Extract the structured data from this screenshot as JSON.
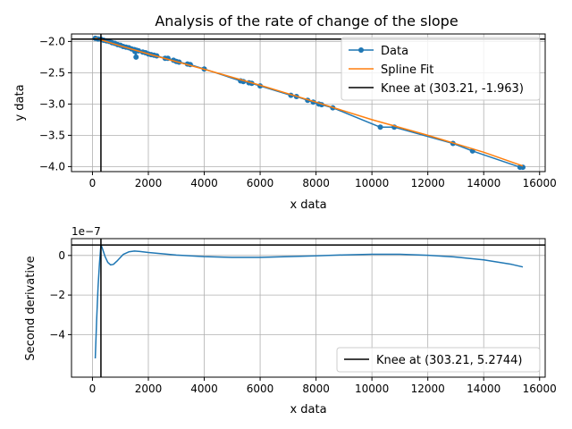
{
  "figure_title": "Analysis of the rate of change of the slope",
  "colors": {
    "data": "#1f77b4",
    "spline": "#ff7f0e",
    "knee": "#000000",
    "grid": "#b0b0b0"
  },
  "chart_data": [
    {
      "type": "line",
      "title": "Analysis of the rate of change of the slope",
      "xlabel": "x data",
      "ylabel": "y data",
      "xlim": [
        -750,
        16200
      ],
      "ylim": [
        -4.08,
        -1.88
      ],
      "xticks": [
        0,
        2000,
        4000,
        6000,
        8000,
        10000,
        12000,
        14000,
        16000
      ],
      "yticks": [
        -4.0,
        -3.5,
        -3.0,
        -2.5,
        -2.0
      ],
      "xtick_labels": [
        "0",
        "2000",
        "4000",
        "6000",
        "8000",
        "10000",
        "12000",
        "14000",
        "16000"
      ],
      "ytick_labels": [
        "−4.0",
        "−3.5",
        "−3.0",
        "−2.5",
        "−2.0"
      ],
      "grid": true,
      "legend_position": "upper right",
      "series": [
        {
          "name": "Data",
          "style": "line-with-markers",
          "points": [
            [
              100,
              -1.95
            ],
            [
              200,
              -1.96
            ],
            [
              303,
              -1.963
            ],
            [
              400,
              -1.98
            ],
            [
              500,
              -1.99
            ],
            [
              600,
              -2.0
            ],
            [
              700,
              -2.02
            ],
            [
              800,
              -2.03
            ],
            [
              900,
              -2.05
            ],
            [
              1000,
              -2.06
            ],
            [
              1100,
              -2.08
            ],
            [
              1200,
              -2.09
            ],
            [
              1300,
              -2.1
            ],
            [
              1400,
              -2.12
            ],
            [
              1500,
              -2.13
            ],
            [
              1520,
              -2.16
            ],
            [
              1560,
              -2.25
            ],
            [
              1580,
              -2.14
            ],
            [
              1650,
              -2.15
            ],
            [
              1800,
              -2.17
            ],
            [
              1900,
              -2.18
            ],
            [
              2000,
              -2.2
            ],
            [
              2100,
              -2.21
            ],
            [
              2200,
              -2.22
            ],
            [
              2300,
              -2.23
            ],
            [
              2600,
              -2.27
            ],
            [
              2700,
              -2.27
            ],
            [
              2900,
              -2.3
            ],
            [
              3000,
              -2.32
            ],
            [
              3100,
              -2.33
            ],
            [
              3400,
              -2.36
            ],
            [
              3500,
              -2.37
            ],
            [
              4000,
              -2.44
            ],
            [
              5300,
              -2.63
            ],
            [
              5400,
              -2.64
            ],
            [
              5600,
              -2.66
            ],
            [
              5700,
              -2.67
            ],
            [
              6000,
              -2.71
            ],
            [
              7100,
              -2.86
            ],
            [
              7300,
              -2.88
            ],
            [
              7700,
              -2.94
            ],
            [
              7900,
              -2.97
            ],
            [
              8100,
              -3.0
            ],
            [
              8200,
              -3.01
            ],
            [
              8600,
              -3.06
            ],
            [
              10300,
              -3.37
            ],
            [
              10800,
              -3.37
            ],
            [
              12900,
              -3.63
            ],
            [
              13600,
              -3.75
            ],
            [
              15300,
              -4.01
            ],
            [
              15400,
              -4.01
            ]
          ]
        },
        {
          "name": "Spline Fit",
          "style": "line",
          "points": [
            [
              100,
              -1.945
            ],
            [
              1000,
              -2.07
            ],
            [
              2000,
              -2.2
            ],
            [
              4000,
              -2.445
            ],
            [
              6000,
              -2.7
            ],
            [
              8000,
              -2.97
            ],
            [
              10000,
              -3.25
            ],
            [
              12000,
              -3.5
            ],
            [
              14000,
              -3.77
            ],
            [
              15400,
              -3.99
            ]
          ]
        },
        {
          "name": "Knee at (303.21, -1.963)",
          "style": "knee-crosshair",
          "x": 303.21,
          "y": -1.963
        }
      ]
    },
    {
      "type": "line",
      "title": "",
      "xlabel": "x data",
      "ylabel": "Second derivative",
      "y_offset_label": "1e−7",
      "xlim": [
        -750,
        16200
      ],
      "ylim": [
        -6.15,
        0.85
      ],
      "xticks": [
        0,
        2000,
        4000,
        6000,
        8000,
        10000,
        12000,
        14000,
        16000
      ],
      "yticks": [
        -4,
        -2,
        0
      ],
      "xtick_labels": [
        "0",
        "2000",
        "4000",
        "6000",
        "8000",
        "10000",
        "12000",
        "14000",
        "16000"
      ],
      "ytick_labels": [
        "−4",
        "−2",
        "0"
      ],
      "grid": true,
      "legend_position": "lower right",
      "series": [
        {
          "name": "",
          "style": "line",
          "points": [
            [
              100,
              -5.2
            ],
            [
              150,
              -3.3
            ],
            [
              200,
              -1.6
            ],
            [
              250,
              -0.4
            ],
            [
              290,
              0.3
            ],
            [
              303,
              0.5
            ],
            [
              330,
              0.45
            ],
            [
              380,
              0.25
            ],
            [
              450,
              -0.05
            ],
            [
              550,
              -0.35
            ],
            [
              650,
              -0.48
            ],
            [
              750,
              -0.45
            ],
            [
              900,
              -0.25
            ],
            [
              1100,
              0.05
            ],
            [
              1300,
              0.18
            ],
            [
              1500,
              0.22
            ],
            [
              1700,
              0.2
            ],
            [
              2000,
              0.15
            ],
            [
              3000,
              0.02
            ],
            [
              4000,
              -0.06
            ],
            [
              5000,
              -0.1
            ],
            [
              6000,
              -0.1
            ],
            [
              7000,
              -0.06
            ],
            [
              8000,
              -0.02
            ],
            [
              9000,
              0.03
            ],
            [
              10000,
              0.06
            ],
            [
              11000,
              0.06
            ],
            [
              12000,
              0.01
            ],
            [
              13000,
              -0.08
            ],
            [
              14000,
              -0.22
            ],
            [
              15000,
              -0.45
            ],
            [
              15400,
              -0.58
            ]
          ]
        },
        {
          "name": "Knee at (303.21, 5.2744)",
          "style": "knee-crosshair",
          "x": 303.21,
          "y": 0.527
        }
      ]
    }
  ]
}
